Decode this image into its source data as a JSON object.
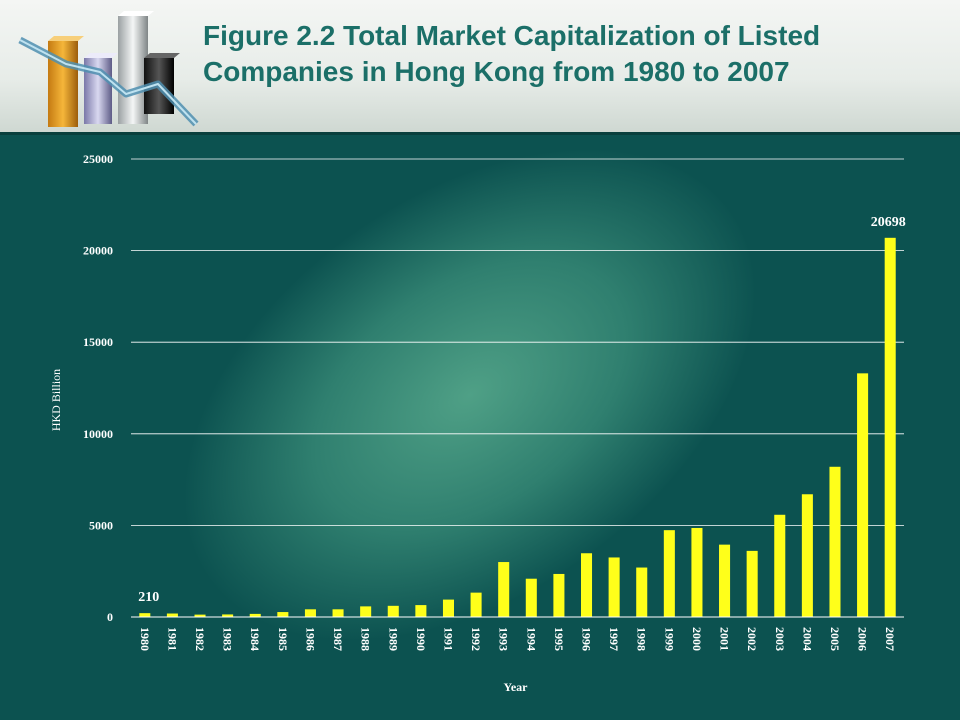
{
  "slide": {
    "title_line1": "Figure 2.2 Total Market Capitalization of Listed",
    "title_line2": "Companies in Hong Kong from 1980 to 2007"
  },
  "colors": {
    "background": "#0c5250",
    "title": "#1b6f68",
    "bar": "#ffff1a",
    "text": "#ffffff"
  },
  "chart_data": {
    "type": "bar",
    "xlabel": "Year",
    "ylabel": "HKD Billion",
    "ylim": [
      0,
      25000
    ],
    "yticks": [
      0,
      5000,
      10000,
      15000,
      20000,
      25000
    ],
    "grid": true,
    "categories": [
      "1980",
      "1981",
      "1982",
      "1983",
      "1984",
      "1985",
      "1986",
      "1987",
      "1988",
      "1989",
      "1990",
      "1991",
      "1992",
      "1993",
      "1994",
      "1995",
      "1996",
      "1997",
      "1998",
      "1999",
      "2000",
      "2001",
      "2002",
      "2003",
      "2004",
      "2005",
      "2006",
      "2007"
    ],
    "values": [
      210,
      190,
      130,
      140,
      170,
      270,
      420,
      420,
      580,
      610,
      650,
      950,
      1330,
      3000,
      2090,
      2350,
      3480,
      3250,
      2700,
      4740,
      4860,
      3950,
      3610,
      5580,
      6700,
      8200,
      13300,
      20698
    ],
    "data_labels": [
      {
        "category": "1980",
        "text": "210"
      },
      {
        "category": "2007",
        "text": "20698"
      }
    ]
  }
}
